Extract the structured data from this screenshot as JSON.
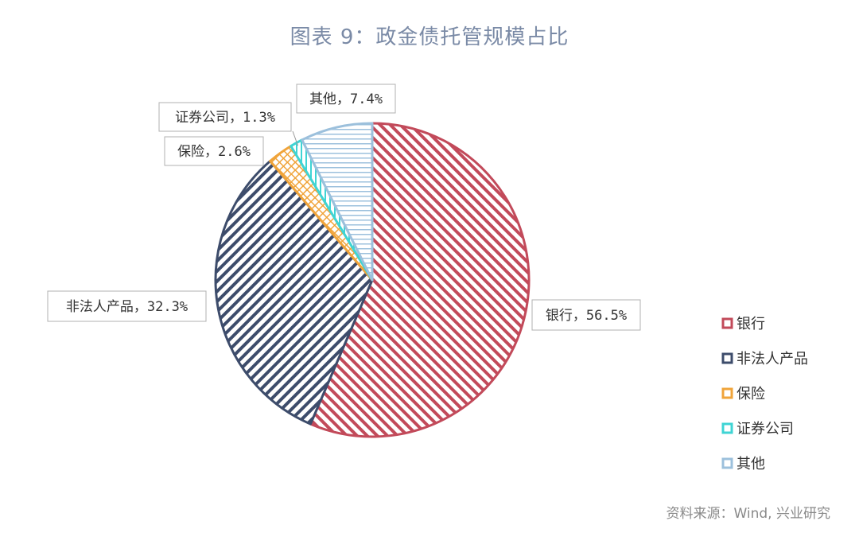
{
  "title": "图表 9：政金债托管规模占比",
  "source": "资料来源：Wind, 兴业研究",
  "chart_data": {
    "type": "pie",
    "title": "图表 9：政金债托管规模占比",
    "unit": "%",
    "legend_position": "right",
    "slices": [
      {
        "name": "银行",
        "value": 56.5,
        "label": "银行，56.5%",
        "color": "#c24a5a",
        "pattern": "diagonal-down"
      },
      {
        "name": "非法人产品",
        "value": 32.3,
        "label": "非法人产品，32.3%",
        "color": "#3d4c6b",
        "pattern": "diagonal-up"
      },
      {
        "name": "保险",
        "value": 2.6,
        "label": "保险，2.6%",
        "color": "#f0a43a",
        "pattern": "crosshatch"
      },
      {
        "name": "证券公司",
        "value": 1.3,
        "label": "证券公司，1.3%",
        "color": "#3fd4d4",
        "pattern": "vertical"
      },
      {
        "name": "其他",
        "value": 7.4,
        "label": "其他，7.4%",
        "color": "#9cc0dc",
        "pattern": "horizontal"
      }
    ]
  }
}
